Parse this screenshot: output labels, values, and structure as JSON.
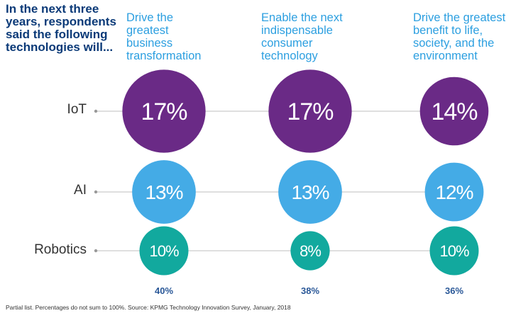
{
  "question": "In the next three years, respondents said the following technologies will...",
  "colors": {
    "question": "#0b3a78",
    "header": "#2c9fe0",
    "iot": "#6a2a86",
    "ai": "#44abe6",
    "robotics": "#12a99e",
    "total": "#2a5898",
    "line": "#cccccc"
  },
  "footnote": "Partial list. Percentages do not sum to 100%. Source: KPMG Technology Innovation Survey, January, 2018",
  "chart_data": {
    "type": "bubble-matrix",
    "columns": [
      "Drive the greatest business transformation",
      "Enable the next indispensable consumer technology",
      "Drive the greatest benefit to life, society, and the environment"
    ],
    "rows": [
      "IoT",
      "AI",
      "Robotics"
    ],
    "values": [
      [
        17,
        17,
        14
      ],
      [
        13,
        13,
        12
      ],
      [
        10,
        8,
        10
      ]
    ],
    "labels": [
      [
        "17%",
        "17%",
        "14%"
      ],
      [
        "13%",
        "13%",
        "12%"
      ],
      [
        "10%",
        "8%",
        "10%"
      ]
    ],
    "totals": [
      "40%",
      "38%",
      "36%"
    ]
  }
}
